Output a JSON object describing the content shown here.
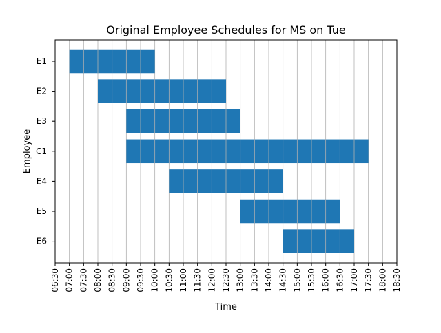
{
  "chart_data": {
    "type": "gantt",
    "title": "Original Employee Schedules for MS on Tue",
    "xlabel": "Time",
    "ylabel": "Employee",
    "x_unit": "hours",
    "xlim": [
      6.5,
      18.5
    ],
    "x_ticks": [
      {
        "value": 6.5,
        "label": "06:30"
      },
      {
        "value": 7.0,
        "label": "07:00"
      },
      {
        "value": 7.5,
        "label": "07:30"
      },
      {
        "value": 8.0,
        "label": "08:00"
      },
      {
        "value": 8.5,
        "label": "08:30"
      },
      {
        "value": 9.0,
        "label": "09:00"
      },
      {
        "value": 9.5,
        "label": "09:30"
      },
      {
        "value": 10.0,
        "label": "10:00"
      },
      {
        "value": 10.5,
        "label": "10:30"
      },
      {
        "value": 11.0,
        "label": "11:00"
      },
      {
        "value": 11.5,
        "label": "11:30"
      },
      {
        "value": 12.0,
        "label": "12:00"
      },
      {
        "value": 12.5,
        "label": "12:30"
      },
      {
        "value": 13.0,
        "label": "13:00"
      },
      {
        "value": 13.5,
        "label": "13:30"
      },
      {
        "value": 14.0,
        "label": "14:00"
      },
      {
        "value": 14.5,
        "label": "14:30"
      },
      {
        "value": 15.0,
        "label": "15:00"
      },
      {
        "value": 15.5,
        "label": "15:30"
      },
      {
        "value": 16.0,
        "label": "16:00"
      },
      {
        "value": 16.5,
        "label": "16:30"
      },
      {
        "value": 17.0,
        "label": "17:00"
      },
      {
        "value": 17.5,
        "label": "17:30"
      },
      {
        "value": 18.0,
        "label": "18:00"
      },
      {
        "value": 18.5,
        "label": "18:30"
      }
    ],
    "categories": [
      "E1",
      "E2",
      "E3",
      "C1",
      "E4",
      "E5",
      "E6"
    ],
    "series": [
      {
        "name": "E1",
        "start": 7.0,
        "end": 10.0
      },
      {
        "name": "E2",
        "start": 8.0,
        "end": 12.5
      },
      {
        "name": "E3",
        "start": 9.0,
        "end": 13.0
      },
      {
        "name": "C1",
        "start": 9.0,
        "end": 17.5
      },
      {
        "name": "E4",
        "start": 10.5,
        "end": 14.5
      },
      {
        "name": "E5",
        "start": 13.0,
        "end": 16.5
      },
      {
        "name": "E6",
        "start": 14.5,
        "end": 17.0
      }
    ],
    "grid": "vertical",
    "bar_color": "#1f77b4",
    "grid_color": "#b0b0b0"
  }
}
